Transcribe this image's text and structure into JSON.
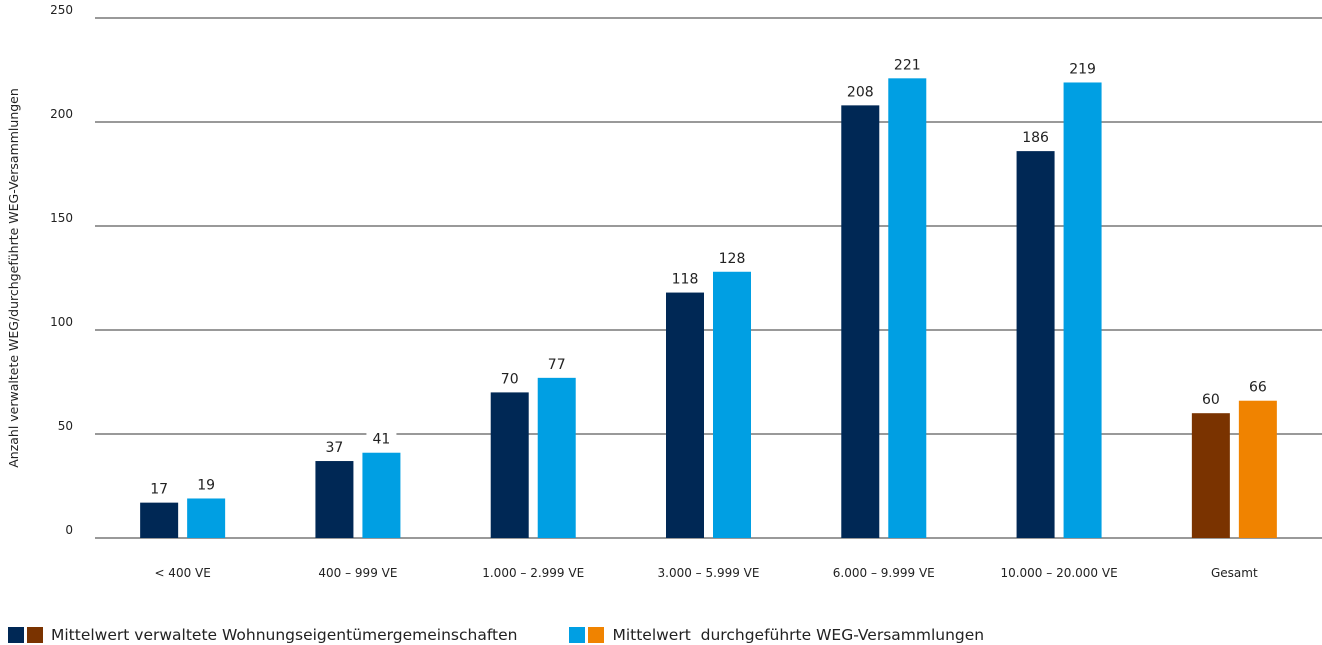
{
  "chart_data": {
    "type": "bar",
    "ylabel": "Anzahl verwaltete WEG/durchgeführte WEG-Versammlungen",
    "ylim": [
      0,
      250
    ],
    "yticks": [
      0,
      50,
      100,
      150,
      200,
      250
    ],
    "grid": true,
    "categories": [
      "< 400 VE",
      "400 – 999 VE",
      "1.000 – 2.999 VE",
      "3.000 – 5.999 VE",
      "6.000 – 9.999 VE",
      "10.000 – 20.000 VE",
      "Gesamt"
    ],
    "series": [
      {
        "name": "Mittelwert verwaltete Wohnungseigentümergemeinschaften",
        "values": [
          17,
          37,
          70,
          118,
          208,
          186,
          60
        ],
        "colors": [
          "#002855",
          "#002855",
          "#002855",
          "#002855",
          "#002855",
          "#002855",
          "#7a3300"
        ]
      },
      {
        "name": "Mittelwert  durchgeführte WEG-Versammlungen",
        "values": [
          19,
          41,
          77,
          128,
          221,
          219,
          66
        ],
        "colors": [
          "#009fe3",
          "#009fe3",
          "#009fe3",
          "#009fe3",
          "#009fe3",
          "#009fe3",
          "#f08300"
        ]
      }
    ],
    "legend": {
      "position": "bottom-left",
      "items": [
        {
          "label": "Mittelwert verwaltete Wohnungseigentümergemeinschaften",
          "colors": [
            "#002855",
            "#7a3300"
          ]
        },
        {
          "label": "Mittelwert  durchgeführte WEG-Versammlungen",
          "colors": [
            "#009fe3",
            "#f08300"
          ]
        }
      ]
    }
  }
}
